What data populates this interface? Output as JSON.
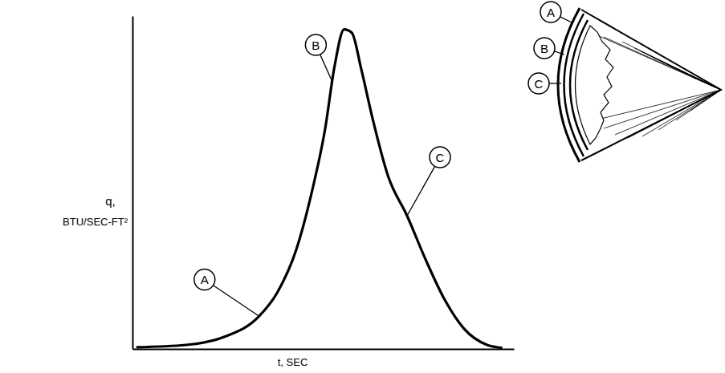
{
  "chart_data": {
    "type": "line",
    "xlabel": "t, SEC",
    "ylabel": [
      "q,",
      "BTU/SEC-FT²"
    ],
    "x": [
      1,
      14,
      24,
      33,
      38,
      43,
      47,
      50.5,
      53,
      55.5,
      57.5,
      60,
      63,
      67,
      72,
      77,
      82,
      87,
      93,
      97
    ],
    "values": [
      0.5,
      1.2,
      3.6,
      9.6,
      17,
      30,
      47,
      66,
      85,
      96,
      95,
      84,
      69,
      52,
      40,
      26.5,
      14.5,
      6,
      1.2,
      0.3
    ],
    "color": "#000000",
    "xlim": [
      0,
      100
    ],
    "ylim": [
      0,
      100
    ],
    "xticks": [],
    "yticks": [],
    "tick_labels": false,
    "grid": false,
    "annotations": [
      {
        "text": "A",
        "x": 33,
        "y": 10
      },
      {
        "text": "B",
        "x": 52.5,
        "y": 80
      },
      {
        "text": "C",
        "x": 72,
        "y": 40
      }
    ],
    "inset_labels": [
      "A",
      "B",
      "C"
    ]
  }
}
